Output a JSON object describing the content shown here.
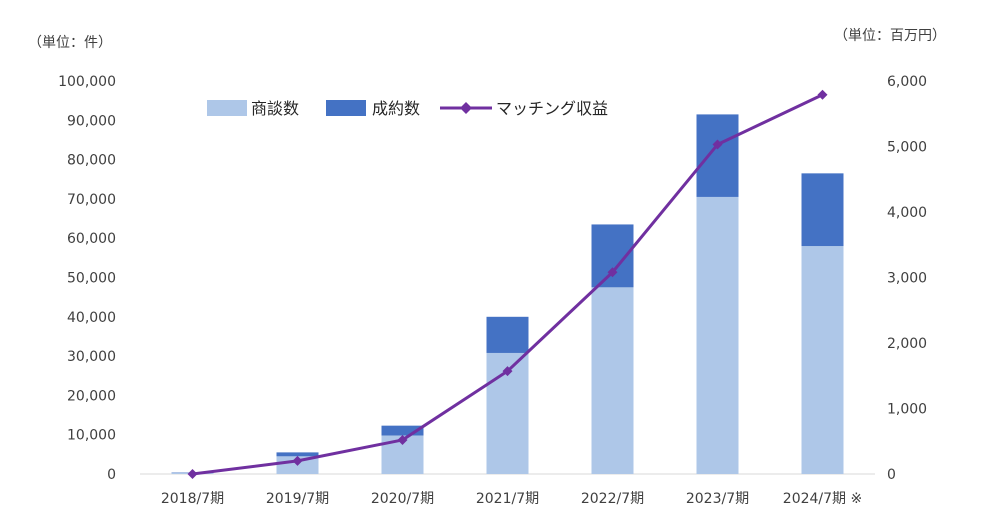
{
  "chart_data": {
    "type": "bar",
    "stacked": true,
    "categories": [
      "2018/7期",
      "2019/7期",
      "2020/7期",
      "2021/7期",
      "2022/7期",
      "2023/7期",
      "2024/7期 ※"
    ],
    "series": [
      {
        "name": "商談数",
        "kind": "bar",
        "axis": "left",
        "color": "#aec7e8",
        "values": [
          300,
          4500,
          9800,
          30800,
          47500,
          70500,
          58000
        ]
      },
      {
        "name": "成約数",
        "kind": "bar",
        "axis": "left",
        "color": "#4472c4",
        "values": [
          100,
          1000,
          2500,
          9200,
          16000,
          21000,
          18500
        ]
      },
      {
        "name": "マッチング収益",
        "kind": "line",
        "axis": "right",
        "color": "#7030a0",
        "values": [
          0,
          200,
          520,
          1570,
          3080,
          5030,
          5790
        ]
      }
    ],
    "left_axis": {
      "unit_label": "（単位：件）",
      "min": 0,
      "max": 100000,
      "ticks": [
        "0",
        "10,000",
        "20,000",
        "30,000",
        "40,000",
        "50,000",
        "60,000",
        "70,000",
        "80,000",
        "90,000",
        "100,000"
      ]
    },
    "right_axis": {
      "unit_label": "（単位：百万円）",
      "min": 0,
      "max": 6000,
      "ticks": [
        "0",
        "1,000",
        "2,000",
        "3,000",
        "4,000",
        "5,000",
        "6,000"
      ]
    },
    "legend_position": "top-left-inside",
    "grid": false
  }
}
